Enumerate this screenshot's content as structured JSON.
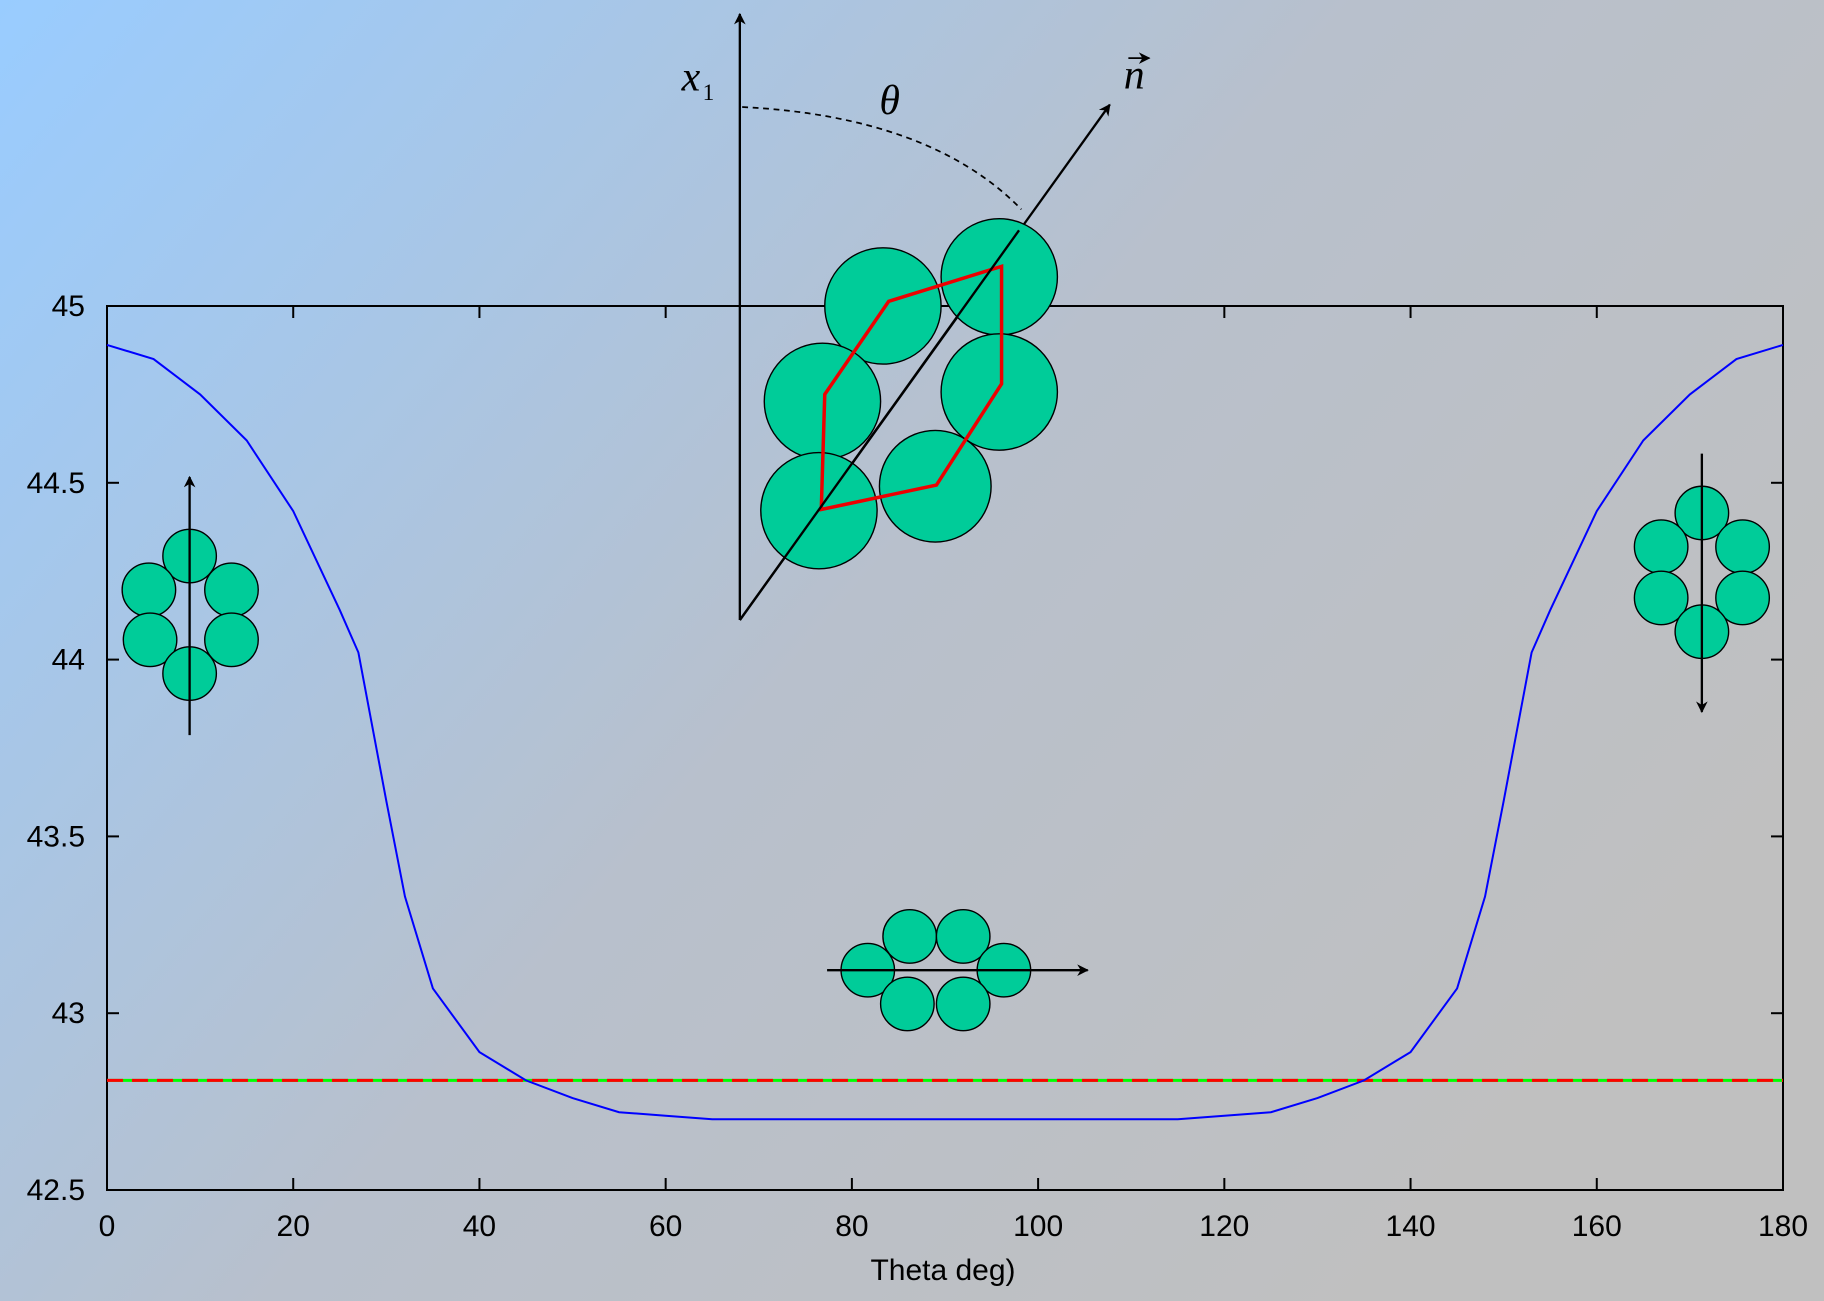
{
  "chart_data": {
    "type": "line",
    "x_label": "Theta deg)",
    "annotations": [
      "x",
      "1",
      "θ",
      "n"
    ],
    "x": [
      0,
      5,
      10,
      15,
      20,
      25,
      27,
      30,
      32,
      35,
      40,
      45,
      50,
      55,
      60,
      65,
      115,
      120,
      125,
      130,
      135,
      140,
      145,
      148,
      150,
      153,
      155,
      160,
      165,
      170,
      175,
      180
    ],
    "series": [
      {
        "color": "#0000ff",
        "values": [
          44.89,
          44.85,
          44.75,
          44.62,
          44.42,
          44.14,
          44.02,
          43.6,
          43.33,
          43.07,
          42.89,
          42.81,
          42.76,
          42.72,
          42.71,
          42.7,
          42.7,
          42.71,
          42.72,
          42.76,
          42.81,
          42.89,
          43.07,
          43.33,
          43.6,
          44.02,
          44.14,
          44.42,
          44.62,
          44.75,
          44.85,
          44.89
        ]
      }
    ],
    "reference_lines": [
      {
        "value": 42.81,
        "color": "#00ff00",
        "dashed": false
      },
      {
        "value": 42.81,
        "color": "#ff0000",
        "dashed": true
      }
    ],
    "xlim": [
      0,
      180
    ],
    "xticks": [
      0,
      20,
      40,
      60,
      80,
      100,
      120,
      140,
      160,
      180
    ],
    "ylim": [
      42.5,
      45
    ],
    "yticks": [
      42.5,
      43,
      43.5,
      44,
      44.5,
      45
    ]
  }
}
